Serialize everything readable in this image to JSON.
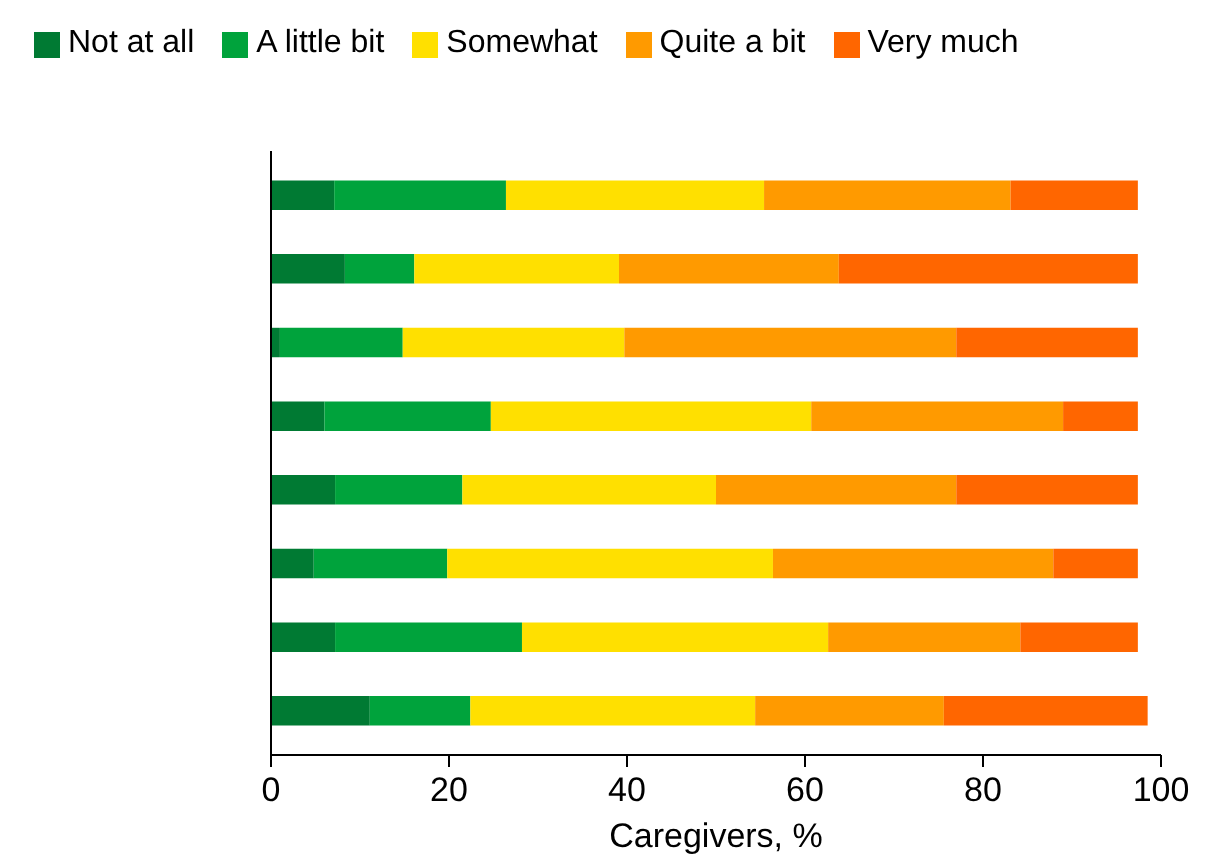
{
  "chart_data": {
    "type": "bar",
    "orientation": "horizontal",
    "stacked": true,
    "xlabel": "Caregivers, %",
    "categories": [
      null,
      null,
      null,
      null,
      null,
      null,
      null,
      null
    ],
    "series": [
      {
        "name": "Not at all",
        "color": "#007a33",
        "values": [
          7.1,
          8.3,
          1.0,
          6.0,
          7.2,
          4.8,
          7.2,
          11.1
        ]
      },
      {
        "name": "A little bit",
        "color": "#00a33c",
        "values": [
          19.3,
          7.8,
          13.8,
          18.7,
          14.3,
          15.0,
          21.0,
          11.3
        ]
      },
      {
        "name": "Somewhat",
        "color": "#ffe000",
        "values": [
          29.0,
          23.0,
          24.9,
          36.0,
          28.5,
          36.6,
          34.4,
          32.0
        ]
      },
      {
        "name": "Quite a bit",
        "color": "#ff9a00",
        "values": [
          27.7,
          24.7,
          37.3,
          28.3,
          27.0,
          31.5,
          21.6,
          21.2
        ]
      },
      {
        "name": "Very much",
        "color": "#ff6600",
        "values": [
          14.3,
          33.6,
          20.4,
          8.4,
          20.4,
          9.5,
          13.2,
          22.9
        ]
      }
    ],
    "xlim": [
      0,
      100
    ],
    "xticks": [
      0,
      20,
      40,
      60,
      80,
      100
    ],
    "grid": false,
    "legend": "top",
    "tick_labels": "x"
  }
}
